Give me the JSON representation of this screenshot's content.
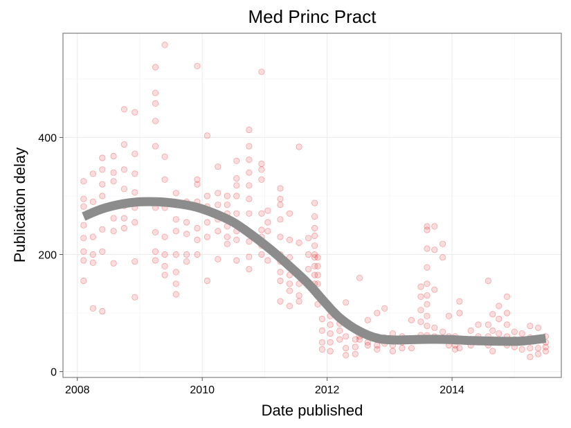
{
  "chart_data": {
    "type": "scatter",
    "title": "Med Princ Pract",
    "xlabel": "Date published",
    "ylabel": "Publication delay",
    "xlim": [
      2007.77,
      2015.75
    ],
    "ylim": [
      -10,
      578
    ],
    "xticks": [
      2008,
      2010,
      2012,
      2014
    ],
    "yticks": [
      0,
      200,
      400
    ],
    "grid": true,
    "point_color": "#e31a1c",
    "smooth_color": "#8c8c8c",
    "points": [
      [
        2008.1,
        325
      ],
      [
        2008.1,
        295
      ],
      [
        2008.1,
        282
      ],
      [
        2008.1,
        250
      ],
      [
        2008.1,
        228
      ],
      [
        2008.1,
        205
      ],
      [
        2008.1,
        190
      ],
      [
        2008.1,
        155
      ],
      [
        2008.25,
        338
      ],
      [
        2008.25,
        290
      ],
      [
        2008.25,
        270
      ],
      [
        2008.25,
        230
      ],
      [
        2008.25,
        200
      ],
      [
        2008.25,
        186
      ],
      [
        2008.25,
        108
      ],
      [
        2008.4,
        365
      ],
      [
        2008.4,
        345
      ],
      [
        2008.4,
        320
      ],
      [
        2008.4,
        300
      ],
      [
        2008.4,
        280
      ],
      [
        2008.4,
        243
      ],
      [
        2008.4,
        205
      ],
      [
        2008.4,
        103
      ],
      [
        2008.58,
        368
      ],
      [
        2008.58,
        340
      ],
      [
        2008.58,
        325
      ],
      [
        2008.58,
        285
      ],
      [
        2008.58,
        262
      ],
      [
        2008.58,
        240
      ],
      [
        2008.58,
        185
      ],
      [
        2008.75,
        448
      ],
      [
        2008.75,
        388
      ],
      [
        2008.75,
        345
      ],
      [
        2008.75,
        312
      ],
      [
        2008.75,
        283
      ],
      [
        2008.75,
        262
      ],
      [
        2008.75,
        245
      ],
      [
        2008.92,
        443
      ],
      [
        2008.92,
        372
      ],
      [
        2008.92,
        338
      ],
      [
        2008.92,
        306
      ],
      [
        2008.92,
        280
      ],
      [
        2008.92,
        255
      ],
      [
        2008.92,
        188
      ],
      [
        2008.92,
        127
      ],
      [
        2009.25,
        520
      ],
      [
        2009.25,
        476
      ],
      [
        2009.25,
        458
      ],
      [
        2009.25,
        428
      ],
      [
        2009.25,
        385
      ],
      [
        2009.25,
        280
      ],
      [
        2009.25,
        238
      ],
      [
        2009.25,
        205
      ],
      [
        2009.25,
        190
      ],
      [
        2009.4,
        558
      ],
      [
        2009.4,
        367
      ],
      [
        2009.4,
        328
      ],
      [
        2009.4,
        280
      ],
      [
        2009.4,
        230
      ],
      [
        2009.4,
        200
      ],
      [
        2009.4,
        180
      ],
      [
        2009.4,
        165
      ],
      [
        2009.58,
        305
      ],
      [
        2009.58,
        285
      ],
      [
        2009.58,
        260
      ],
      [
        2009.58,
        240
      ],
      [
        2009.58,
        200
      ],
      [
        2009.58,
        170
      ],
      [
        2009.58,
        150
      ],
      [
        2009.58,
        132
      ],
      [
        2009.75,
        290
      ],
      [
        2009.75,
        255
      ],
      [
        2009.75,
        235
      ],
      [
        2009.75,
        200
      ],
      [
        2009.75,
        188
      ],
      [
        2009.92,
        522
      ],
      [
        2009.92,
        328
      ],
      [
        2009.92,
        320
      ],
      [
        2009.92,
        290
      ],
      [
        2009.92,
        245
      ],
      [
        2009.92,
        225
      ],
      [
        2009.92,
        200
      ],
      [
        2010.08,
        403
      ],
      [
        2010.08,
        300
      ],
      [
        2010.08,
        282
      ],
      [
        2010.08,
        255
      ],
      [
        2010.08,
        230
      ],
      [
        2010.08,
        155
      ],
      [
        2010.25,
        350
      ],
      [
        2010.25,
        305
      ],
      [
        2010.25,
        285
      ],
      [
        2010.25,
        260
      ],
      [
        2010.25,
        240
      ],
      [
        2010.25,
        192
      ],
      [
        2010.4,
        300
      ],
      [
        2010.4,
        285
      ],
      [
        2010.4,
        270
      ],
      [
        2010.4,
        248
      ],
      [
        2010.4,
        230
      ],
      [
        2010.4,
        218
      ],
      [
        2010.55,
        360
      ],
      [
        2010.55,
        330
      ],
      [
        2010.55,
        318
      ],
      [
        2010.55,
        300
      ],
      [
        2010.55,
        270
      ],
      [
        2010.55,
        240
      ],
      [
        2010.55,
        225
      ],
      [
        2010.55,
        190
      ],
      [
        2010.75,
        413
      ],
      [
        2010.75,
        385
      ],
      [
        2010.75,
        362
      ],
      [
        2010.75,
        340
      ],
      [
        2010.75,
        318
      ],
      [
        2010.75,
        295
      ],
      [
        2010.75,
        270
      ],
      [
        2010.75,
        222
      ],
      [
        2010.75,
        196
      ],
      [
        2010.75,
        175
      ],
      [
        2010.95,
        512
      ],
      [
        2010.95,
        355
      ],
      [
        2010.95,
        345
      ],
      [
        2010.95,
        328
      ],
      [
        2010.95,
        270
      ],
      [
        2010.95,
        242
      ],
      [
        2010.95,
        230
      ],
      [
        2010.95,
        215
      ],
      [
        2010.95,
        200
      ],
      [
        2011.05,
        275
      ],
      [
        2011.05,
        255
      ],
      [
        2011.05,
        240
      ],
      [
        2011.05,
        210
      ],
      [
        2011.05,
        190
      ],
      [
        2011.25,
        313
      ],
      [
        2011.25,
        295
      ],
      [
        2011.25,
        285
      ],
      [
        2011.25,
        260
      ],
      [
        2011.25,
        230
      ],
      [
        2011.25,
        200
      ],
      [
        2011.25,
        188
      ],
      [
        2011.25,
        170
      ],
      [
        2011.25,
        155
      ],
      [
        2011.25,
        120
      ],
      [
        2011.4,
        270
      ],
      [
        2011.4,
        225
      ],
      [
        2011.4,
        195
      ],
      [
        2011.4,
        165
      ],
      [
        2011.4,
        150
      ],
      [
        2011.4,
        138
      ],
      [
        2011.4,
        112
      ],
      [
        2011.55,
        384
      ],
      [
        2011.55,
        220
      ],
      [
        2011.55,
        150
      ],
      [
        2011.55,
        130
      ],
      [
        2011.55,
        120
      ],
      [
        2011.7,
        228
      ],
      [
        2011.7,
        200
      ],
      [
        2011.7,
        175
      ],
      [
        2011.7,
        150
      ],
      [
        2011.8,
        288
      ],
      [
        2011.8,
        265
      ],
      [
        2011.8,
        245
      ],
      [
        2011.8,
        232
      ],
      [
        2011.8,
        215
      ],
      [
        2011.8,
        200
      ],
      [
        2011.8,
        195
      ],
      [
        2011.8,
        180
      ],
      [
        2011.8,
        165
      ],
      [
        2011.8,
        150
      ],
      [
        2011.8,
        140
      ],
      [
        2011.85,
        195
      ],
      [
        2011.85,
        180
      ],
      [
        2011.85,
        165
      ],
      [
        2011.85,
        150
      ],
      [
        2011.85,
        130
      ],
      [
        2011.85,
        115
      ],
      [
        2011.92,
        90
      ],
      [
        2011.92,
        70
      ],
      [
        2011.92,
        50
      ],
      [
        2011.92,
        38
      ],
      [
        2012.05,
        95
      ],
      [
        2012.05,
        80
      ],
      [
        2012.05,
        65
      ],
      [
        2012.05,
        50
      ],
      [
        2012.05,
        35
      ],
      [
        2012.2,
        82
      ],
      [
        2012.2,
        70
      ],
      [
        2012.2,
        55
      ],
      [
        2012.3,
        118
      ],
      [
        2012.3,
        60
      ],
      [
        2012.3,
        40
      ],
      [
        2012.3,
        28
      ],
      [
        2012.45,
        75
      ],
      [
        2012.45,
        55
      ],
      [
        2012.45,
        42
      ],
      [
        2012.45,
        30
      ],
      [
        2012.52,
        160
      ],
      [
        2012.52,
        70
      ],
      [
        2012.52,
        60
      ],
      [
        2012.52,
        55
      ],
      [
        2012.65,
        88
      ],
      [
        2012.65,
        60
      ],
      [
        2012.65,
        50
      ],
      [
        2012.65,
        45
      ],
      [
        2012.8,
        100
      ],
      [
        2012.8,
        60
      ],
      [
        2012.8,
        45
      ],
      [
        2012.8,
        38
      ],
      [
        2012.92,
        108
      ],
      [
        2012.92,
        58
      ],
      [
        2012.92,
        48
      ],
      [
        2013.05,
        65
      ],
      [
        2013.05,
        55
      ],
      [
        2013.05,
        45
      ],
      [
        2013.05,
        35
      ],
      [
        2013.2,
        60
      ],
      [
        2013.2,
        50
      ],
      [
        2013.2,
        40
      ],
      [
        2013.35,
        88
      ],
      [
        2013.35,
        55
      ],
      [
        2013.35,
        40
      ],
      [
        2013.5,
        145
      ],
      [
        2013.5,
        128
      ],
      [
        2013.5,
        105
      ],
      [
        2013.5,
        85
      ],
      [
        2013.5,
        62
      ],
      [
        2013.6,
        248
      ],
      [
        2013.6,
        242
      ],
      [
        2013.6,
        210
      ],
      [
        2013.6,
        178
      ],
      [
        2013.6,
        150
      ],
      [
        2013.6,
        130
      ],
      [
        2013.6,
        115
      ],
      [
        2013.6,
        95
      ],
      [
        2013.6,
        78
      ],
      [
        2013.6,
        62
      ],
      [
        2013.72,
        248
      ],
      [
        2013.72,
        208
      ],
      [
        2013.72,
        140
      ],
      [
        2013.72,
        75
      ],
      [
        2013.72,
        60
      ],
      [
        2013.85,
        218
      ],
      [
        2013.85,
        195
      ],
      [
        2013.85,
        68
      ],
      [
        2013.85,
        55
      ],
      [
        2013.95,
        95
      ],
      [
        2013.95,
        60
      ],
      [
        2013.95,
        45
      ],
      [
        2014.05,
        60
      ],
      [
        2014.05,
        45
      ],
      [
        2014.05,
        38
      ],
      [
        2014.12,
        120
      ],
      [
        2014.12,
        100
      ],
      [
        2014.12,
        55
      ],
      [
        2014.12,
        40
      ],
      [
        2014.3,
        70
      ],
      [
        2014.3,
        55
      ],
      [
        2014.3,
        45
      ],
      [
        2014.42,
        80
      ],
      [
        2014.42,
        60
      ],
      [
        2014.42,
        50
      ],
      [
        2014.58,
        155
      ],
      [
        2014.58,
        80
      ],
      [
        2014.58,
        60
      ],
      [
        2014.58,
        45
      ],
      [
        2014.65,
        98
      ],
      [
        2014.65,
        70
      ],
      [
        2014.65,
        55
      ],
      [
        2014.65,
        35
      ],
      [
        2014.75,
        112
      ],
      [
        2014.75,
        90
      ],
      [
        2014.75,
        65
      ],
      [
        2014.75,
        50
      ],
      [
        2014.88,
        128
      ],
      [
        2014.88,
        100
      ],
      [
        2014.88,
        80
      ],
      [
        2014.88,
        60
      ],
      [
        2014.88,
        45
      ],
      [
        2015.0,
        68
      ],
      [
        2015.0,
        55
      ],
      [
        2015.0,
        42
      ],
      [
        2015.12,
        65
      ],
      [
        2015.12,
        50
      ],
      [
        2015.12,
        38
      ],
      [
        2015.25,
        78
      ],
      [
        2015.25,
        58
      ],
      [
        2015.25,
        40
      ],
      [
        2015.25,
        25
      ],
      [
        2015.38,
        75
      ],
      [
        2015.38,
        55
      ],
      [
        2015.38,
        40
      ],
      [
        2015.38,
        30
      ],
      [
        2015.5,
        60
      ],
      [
        2015.5,
        50
      ],
      [
        2015.5,
        42
      ],
      [
        2015.5,
        35
      ]
    ],
    "smooth": [
      [
        2008.1,
        265
      ],
      [
        2008.4,
        278
      ],
      [
        2008.7,
        286
      ],
      [
        2009.0,
        290
      ],
      [
        2009.3,
        290
      ],
      [
        2009.6,
        287
      ],
      [
        2009.9,
        281
      ],
      [
        2010.2,
        270
      ],
      [
        2010.5,
        255
      ],
      [
        2010.8,
        233
      ],
      [
        2011.1,
        208
      ],
      [
        2011.4,
        180
      ],
      [
        2011.7,
        150
      ],
      [
        2011.95,
        120
      ],
      [
        2012.2,
        92
      ],
      [
        2012.5,
        70
      ],
      [
        2012.8,
        57
      ],
      [
        2013.1,
        54
      ],
      [
        2013.5,
        55
      ],
      [
        2013.9,
        55
      ],
      [
        2014.3,
        53
      ],
      [
        2014.7,
        52
      ],
      [
        2015.1,
        52
      ],
      [
        2015.5,
        57
      ]
    ]
  }
}
